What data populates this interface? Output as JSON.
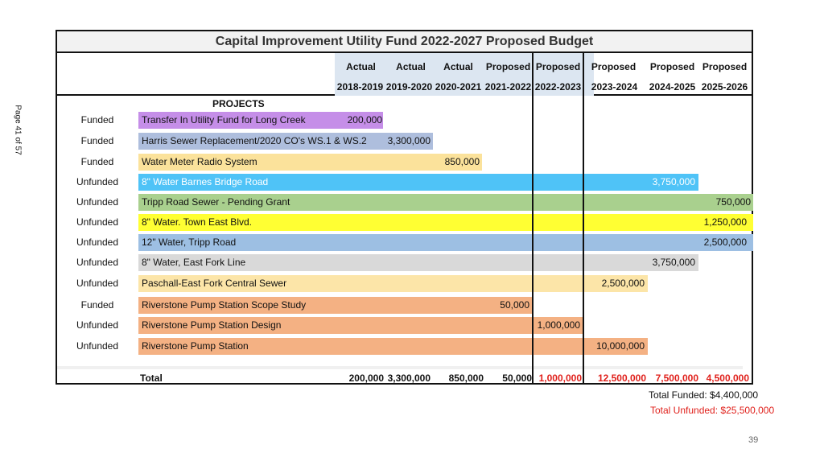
{
  "side_label": "Page 41 of 57",
  "title": "Capital Improvement Utility Fund 2022-2027 Proposed Budget",
  "header": {
    "row1": [
      "Actual",
      "Actual",
      "Actual",
      "Proposed",
      "Proposed",
      "Proposed",
      "Proposed",
      "Proposed"
    ],
    "row2": [
      "2018-2019",
      "2019-2020",
      "2020-2021",
      "2021-2022",
      "2022-2023",
      "2023-2024",
      "2024-2025",
      "2025-2026"
    ]
  },
  "projects_label": "PROJECTS",
  "rows": [
    {
      "status": "Funded",
      "name": "Transfer In Utility Fund for Long Creek",
      "value": "200,000",
      "color": "#c58ee8"
    },
    {
      "status": "Funded",
      "name": "Harris Sewer Replacement/2020 CO's WS.1 & WS.2",
      "value": "3,300,000",
      "color": "#aebedd"
    },
    {
      "status": "Funded",
      "name": "Water Meter Radio System",
      "value": "850,000",
      "color": "#fbe29b"
    },
    {
      "status": "Unfunded",
      "name": "8\" Water Barnes Bridge Road",
      "value": "3,750,000",
      "color": "#4fc3f7"
    },
    {
      "status": "Unfunded",
      "name": "Tripp Road Sewer - Pending Grant",
      "value": "750,000",
      "color": "#a9d08e"
    },
    {
      "status": "Unfunded",
      "name": "8\" Water. Town East Blvd.",
      "value": "1,250,000",
      "color": "#ffff33"
    },
    {
      "status": "Unfunded",
      "name": "12\" Water, Tripp Road",
      "value": "2,500,000",
      "color": "#9dbfe3"
    },
    {
      "status": "Unfunded",
      "name": "8\" Water, East Fork Line",
      "value": "3,750,000",
      "color": "#d9d9d9"
    },
    {
      "status": "Unfunded",
      "name": "Paschall-East Fork Central Sewer",
      "value": "2,500,000",
      "color": "#fce5a8"
    },
    {
      "status": "Funded",
      "name": "Riverstone Pump Station Scope Study",
      "value": "50,000",
      "color": "#f4b183"
    },
    {
      "status": "Unfunded",
      "name": "Riverstone Pump Station Design",
      "value": "1,000,000",
      "color": "#f4b183"
    },
    {
      "status": "Unfunded",
      "name": "Riverstone Pump Station",
      "value": "10,000,000",
      "color": "#f4b183"
    }
  ],
  "total": {
    "label": "Total",
    "values": [
      "200,000",
      "3,300,000",
      "850,000",
      "50,000",
      "1,000,000",
      "12,500,000",
      "7,500,000",
      "4,500,000"
    ]
  },
  "summary": {
    "funded": "Total Funded: $4,400,000",
    "unfunded": "Total Unfunded:  $25,500,000"
  },
  "page_number": "39",
  "colors": {
    "unfunded_red": "#e0201b",
    "black": "#111111"
  }
}
